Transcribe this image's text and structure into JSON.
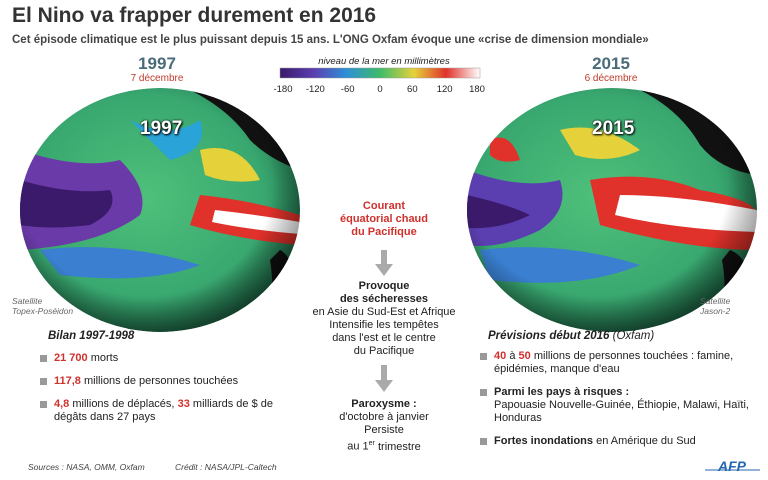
{
  "header": {
    "title": "El Nino va frapper durement en 2016",
    "subtitle": "Cet épisode climatique est le plus puissant depuis 15 ans. L'ONG Oxfam évoque une «crise de dimension mondiale»"
  },
  "scale": {
    "label": "niveau de la mer en millimètres",
    "ticks": [
      -180,
      -120,
      -60,
      0,
      60,
      120,
      180
    ]
  },
  "left_map": {
    "year": "1997",
    "date": "7 décembre",
    "overlay_year": "1997",
    "satellite": [
      "Satellite",
      "Topex-Poséidon"
    ]
  },
  "right_map": {
    "year": "2015",
    "date": "6 décembre",
    "overlay_year": "2015",
    "satellite": [
      "Satellite",
      "Jason-2"
    ]
  },
  "center": {
    "current": [
      "Courant",
      "équatorial chaud",
      "du Pacifique"
    ],
    "effects_title": [
      "Provoque",
      "des sécheresses"
    ],
    "effects_lines": [
      "en Asie du Sud-Est et Afrique",
      "Intensifie les tempêtes",
      "dans l'est et le centre",
      "du Pacifique"
    ],
    "paroxysm_title": "Paroxysme :",
    "paroxysm_lines": [
      "d'octobre à janvier",
      "Persiste"
    ],
    "paroxysm_last": [
      {
        "text": "au 1"
      },
      {
        "text": "er",
        "style": "sup"
      },
      {
        "text": "trimestre"
      }
    ]
  },
  "bilan": {
    "title": "Bilan 1997-1998",
    "items": [
      [
        {
          "text": "21 700",
          "style": "red"
        },
        {
          "text": "morts"
        }
      ],
      [
        {
          "text": "117,8",
          "style": "red"
        },
        {
          "text": "millions de personnes touchées"
        }
      ],
      [
        {
          "text": "4,8",
          "style": "red"
        },
        {
          "text": "millions de déplacés,"
        },
        {
          "text": "33",
          "style": "red"
        },
        {
          "text": "milliards de $ de dégâts dans 27 pays"
        }
      ]
    ]
  },
  "forecast": {
    "title": "Prévisions début 2016",
    "title_note": "(Oxfam)",
    "items": [
      [
        {
          "text": "40",
          "style": "red"
        },
        {
          "text": "à"
        },
        {
          "text": "50",
          "style": "red"
        },
        {
          "text": "millions de personnes touchées : famine, épidémies, manque d'eau"
        }
      ],
      [
        {
          "text": "Parmi les pays à risques :",
          "style": "heading"
        },
        {
          "text": "Papouasie Nouvelle-Guinée, Éthiopie, Malawi, Haïti, Honduras"
        }
      ],
      [
        {
          "text": "Fortes inondations",
          "style": "strong"
        },
        {
          "text": "en Amérique du Sud"
        }
      ]
    ]
  },
  "footer": {
    "sources": "Sources : NASA, OMM, Oxfam",
    "credit": "Crédit : NASA/JPL-Caltech",
    "logo": "AFP"
  }
}
